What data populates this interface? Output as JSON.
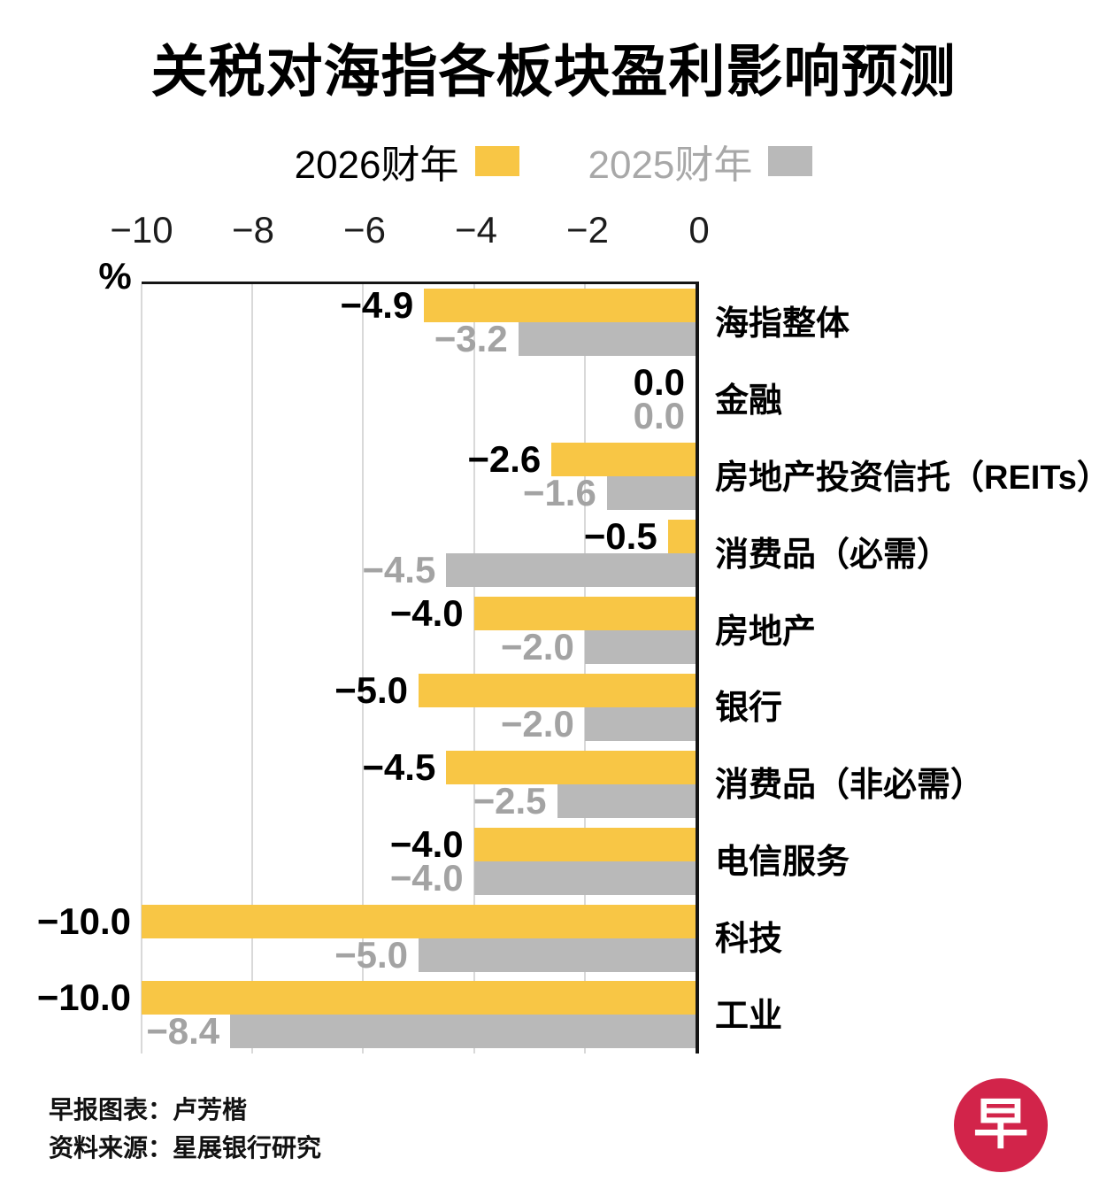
{
  "title": "关税对海指各板块盈利影响预测",
  "legend": {
    "items": [
      {
        "label": "2026财年",
        "color": "#f8c645",
        "text_color": "#000000"
      },
      {
        "label": "2025财年",
        "color": "#b9b9b9",
        "text_color": "#a8a8a8"
      }
    ]
  },
  "chart_data": {
    "type": "bar",
    "orientation": "horizontal",
    "title": "关税对海指各板块盈利影响预测",
    "unit": "%",
    "xlim": [
      -10,
      0
    ],
    "ticks": [
      -10,
      -8,
      -6,
      -4,
      -2,
      0
    ],
    "tick_labels": [
      "−10",
      "−8",
      "−6",
      "−4",
      "−2",
      "0"
    ],
    "grid": true,
    "legend_position": "top",
    "categories": [
      "海指整体",
      "金融",
      "房地产投资信托（REITs）",
      "消费品（必需）",
      "房地产",
      "银行",
      "消费品（非必需）",
      "电信服务",
      "科技",
      "工业"
    ],
    "series": [
      {
        "name": "2026财年",
        "color": "#f8c645",
        "label_color": "#000000",
        "values": [
          -4.9,
          0.0,
          -2.6,
          -0.5,
          -4.0,
          -5.0,
          -4.5,
          -4.0,
          -10.0,
          -10.0
        ]
      },
      {
        "name": "2025财年",
        "color": "#b9b9b9",
        "label_color": "#a3a3a3",
        "values": [
          -3.2,
          0.0,
          -1.6,
          -4.5,
          -2.0,
          -2.0,
          -2.5,
          -4.0,
          -5.0,
          -8.4
        ]
      }
    ]
  },
  "footer": {
    "credit": "早报图表：卢芳楷",
    "source": "资料来源：星展银行研究"
  },
  "logo": {
    "glyph": "早",
    "color": "#d2244a"
  }
}
